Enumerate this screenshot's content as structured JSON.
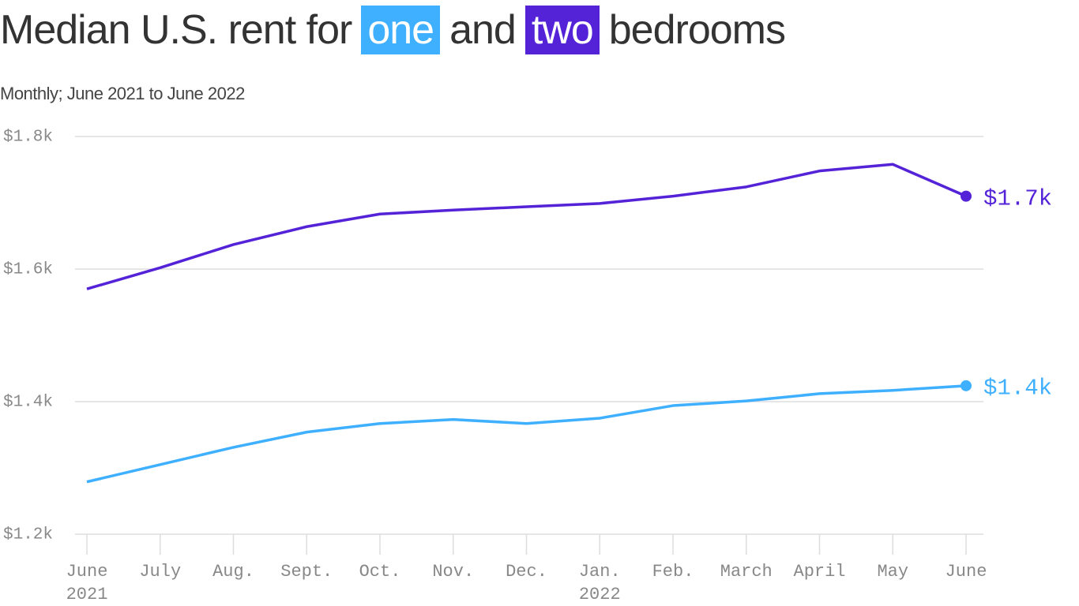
{
  "chart_data": {
    "type": "line",
    "title": [
      "Median U.S. rent for",
      "and",
      "bedrooms"
    ],
    "subtitle": "Monthly; June 2021 to June 2022",
    "categories": [
      "June\n2021",
      "July",
      "Aug.",
      "Sept.",
      "Oct.",
      "Nov.",
      "Dec.",
      "Jan.\n2022",
      "Feb.",
      "March",
      "April",
      "May",
      "June"
    ],
    "series": [
      {
        "name": "one",
        "color": "#3fb0ff",
        "values": [
          1279,
          1305,
          1331,
          1354,
          1367,
          1373,
          1367,
          1375,
          1394,
          1401,
          1412,
          1417,
          1424
        ],
        "value_labels": [
          null,
          null,
          null,
          null,
          null,
          null,
          null,
          null,
          null,
          null,
          null,
          null,
          "$1.4k"
        ]
      },
      {
        "name": "two",
        "color": "#5423d8",
        "values": [
          1570,
          1602,
          1637,
          1664,
          1683,
          1689,
          1694,
          1699,
          1710,
          1724,
          1748,
          1758,
          1710
        ],
        "value_labels": [
          null,
          null,
          null,
          null,
          null,
          null,
          null,
          null,
          null,
          null,
          null,
          null,
          "$1.7k"
        ]
      }
    ],
    "ylim": [
      1200,
      1800
    ],
    "yticks": [
      {
        "value": 1200,
        "label": "$1.2k"
      },
      {
        "value": 1400,
        "label": "$1.4k"
      },
      {
        "value": 1600,
        "label": "$1.6k"
      },
      {
        "value": 1800,
        "label": "$1.8k"
      }
    ],
    "grid": true
  }
}
